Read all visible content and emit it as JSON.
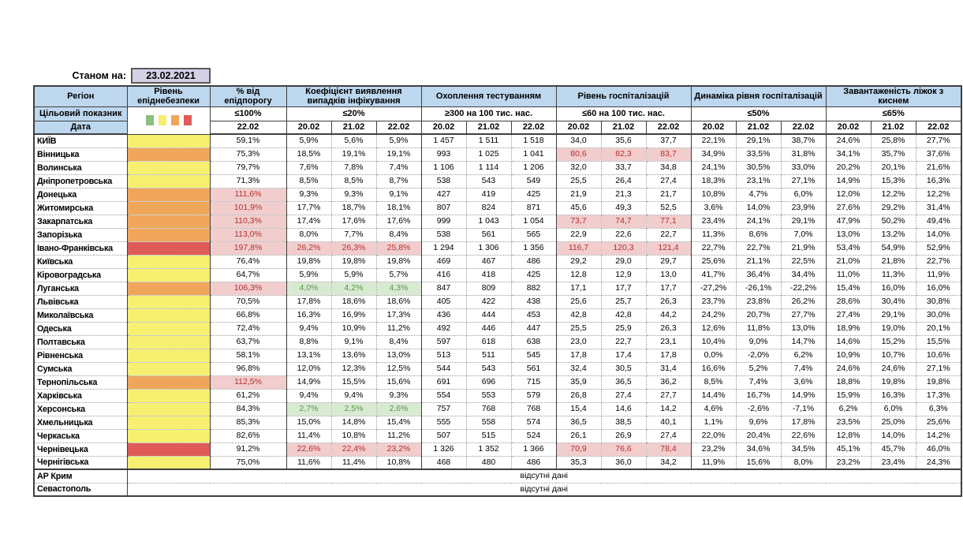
{
  "meta": {
    "as_of_label": "Станом на:",
    "as_of_date": "23.02.2021",
    "missing_data_text": "відсутні дані"
  },
  "colors": {
    "header_bg": "#BDD7EE",
    "date_box_bg": "#D6D0E6",
    "level_green": "#8CBE7D",
    "level_yellow": "#F6EF70",
    "level_orange": "#F0A65A",
    "level_red": "#DE5B58",
    "alert_bg": "#F2CDCD",
    "alert_text": "#B52E2E",
    "good_bg": "#D9EAD3",
    "good_text": "#559646"
  },
  "table": {
    "region_header": "Регіон",
    "target_row_label": "Цільовий показник",
    "date_row_label": "Дата",
    "legend_colors": [
      "level_green",
      "level_yellow",
      "level_orange",
      "level_red"
    ],
    "groups": [
      {
        "label": "Рівень епіднебезпеки",
        "target": "",
        "dates": []
      },
      {
        "label": "% від епідпорогу",
        "target": "≤100%",
        "dates": [
          "22.02"
        ]
      },
      {
        "label": "Коефіцієнт виявлення випадків інфікування",
        "target": "≤20%",
        "dates": [
          "20.02",
          "21.02",
          "22.02"
        ]
      },
      {
        "label": "Охоплення тестуванням",
        "target": "≥300 на 100 тис. нас.",
        "dates": [
          "20.02",
          "21.02",
          "22.02"
        ]
      },
      {
        "label": "Рівень госпіталізацій",
        "target": "≤60 на 100 тис. нас.",
        "dates": [
          "20.02",
          "21.02",
          "22.02"
        ]
      },
      {
        "label": "Динаміка рівня госпіталізацій",
        "target": "≤50%",
        "dates": [
          "20.02",
          "21.02",
          "22.02"
        ]
      },
      {
        "label": "Завантаженість ліжок з киснем",
        "target": "≤65%",
        "dates": [
          "20.02",
          "21.02",
          "22.02"
        ]
      }
    ],
    "rows": [
      {
        "region": "КИЇВ",
        "level": "yellow",
        "epi": "59,1%",
        "epi_alert": false,
        "detect": [
          "5,9%",
          "5,6%",
          "5,9%"
        ],
        "detect_state": "normal",
        "test": [
          "1 457",
          "1 511",
          "1 518"
        ],
        "hosp": [
          "34,0",
          "35,6",
          "37,7"
        ],
        "hosp_alert": false,
        "dyn": [
          "22,1%",
          "29,1%",
          "38,7%"
        ],
        "beds": [
          "24,6%",
          "25,8%",
          "27,7%"
        ]
      },
      {
        "region": "Вінницька",
        "level": "orange",
        "epi": "75,3%",
        "epi_alert": false,
        "detect": [
          "18,5%",
          "19,1%",
          "19,1%"
        ],
        "detect_state": "normal",
        "test": [
          "993",
          "1 025",
          "1 041"
        ],
        "hosp": [
          "80,6",
          "82,3",
          "83,7"
        ],
        "hosp_alert": true,
        "dyn": [
          "34,9%",
          "33,5%",
          "31,8%"
        ],
        "beds": [
          "34,1%",
          "35,7%",
          "37,6%"
        ]
      },
      {
        "region": "Волинська",
        "level": "yellow",
        "epi": "79,7%",
        "epi_alert": false,
        "detect": [
          "7,6%",
          "7,8%",
          "7,4%"
        ],
        "detect_state": "normal",
        "test": [
          "1 106",
          "1 114",
          "1 206"
        ],
        "hosp": [
          "32,0",
          "33,7",
          "34,8"
        ],
        "hosp_alert": false,
        "dyn": [
          "24,1%",
          "30,5%",
          "33,0%"
        ],
        "beds": [
          "20,2%",
          "20,1%",
          "21,6%"
        ]
      },
      {
        "region": "Дніпропетровська",
        "level": "yellow",
        "epi": "71,3%",
        "epi_alert": false,
        "detect": [
          "8,5%",
          "8,5%",
          "8,7%"
        ],
        "detect_state": "normal",
        "test": [
          "538",
          "543",
          "549"
        ],
        "hosp": [
          "25,5",
          "26,4",
          "27,4"
        ],
        "hosp_alert": false,
        "dyn": [
          "18,3%",
          "23,1%",
          "27,1%"
        ],
        "beds": [
          "14,9%",
          "15,3%",
          "16,3%"
        ]
      },
      {
        "region": "Донецька",
        "level": "orange",
        "epi": "111,6%",
        "epi_alert": true,
        "detect": [
          "9,3%",
          "9,3%",
          "9,1%"
        ],
        "detect_state": "normal",
        "test": [
          "427",
          "419",
          "425"
        ],
        "hosp": [
          "21,9",
          "21,3",
          "21,7"
        ],
        "hosp_alert": false,
        "dyn": [
          "10,8%",
          "4,7%",
          "6,0%"
        ],
        "beds": [
          "12,0%",
          "12,2%",
          "12,2%"
        ]
      },
      {
        "region": "Житомирська",
        "level": "orange",
        "epi": "101,9%",
        "epi_alert": true,
        "detect": [
          "17,7%",
          "18,7%",
          "18,1%"
        ],
        "detect_state": "normal",
        "test": [
          "807",
          "824",
          "871"
        ],
        "hosp": [
          "45,6",
          "49,3",
          "52,5"
        ],
        "hosp_alert": false,
        "dyn": [
          "3,6%",
          "14,0%",
          "23,9%"
        ],
        "beds": [
          "27,6%",
          "29,2%",
          "31,4%"
        ]
      },
      {
        "region": "Закарпатська",
        "level": "orange",
        "epi": "110,3%",
        "epi_alert": true,
        "detect": [
          "17,4%",
          "17,6%",
          "17,6%"
        ],
        "detect_state": "normal",
        "test": [
          "999",
          "1 043",
          "1 054"
        ],
        "hosp": [
          "73,7",
          "74,7",
          "77,1"
        ],
        "hosp_alert": true,
        "dyn": [
          "23,4%",
          "24,1%",
          "29,1%"
        ],
        "beds": [
          "47,9%",
          "50,2%",
          "49,4%"
        ]
      },
      {
        "region": "Запорізька",
        "level": "orange",
        "epi": "113,0%",
        "epi_alert": true,
        "detect": [
          "8,0%",
          "7,7%",
          "8,4%"
        ],
        "detect_state": "normal",
        "test": [
          "538",
          "561",
          "565"
        ],
        "hosp": [
          "22,9",
          "22,6",
          "22,7"
        ],
        "hosp_alert": false,
        "dyn": [
          "11,3%",
          "8,6%",
          "7,0%"
        ],
        "beds": [
          "13,0%",
          "13,2%",
          "14,0%"
        ]
      },
      {
        "region": "Івано-Франківська",
        "level": "red",
        "epi": "197,8%",
        "epi_alert": true,
        "detect": [
          "26,2%",
          "26,3%",
          "25,8%"
        ],
        "detect_state": "alert",
        "test": [
          "1 294",
          "1 306",
          "1 356"
        ],
        "hosp": [
          "116,7",
          "120,3",
          "121,4"
        ],
        "hosp_alert": true,
        "dyn": [
          "22,7%",
          "22,7%",
          "21,9%"
        ],
        "beds": [
          "53,4%",
          "54,9%",
          "52,9%"
        ]
      },
      {
        "region": "Київська",
        "level": "yellow",
        "epi": "76,4%",
        "epi_alert": false,
        "detect": [
          "19,8%",
          "19,8%",
          "19,8%"
        ],
        "detect_state": "normal",
        "test": [
          "469",
          "467",
          "486"
        ],
        "hosp": [
          "29,2",
          "29,0",
          "29,7"
        ],
        "hosp_alert": false,
        "dyn": [
          "25,6%",
          "21,1%",
          "22,5%"
        ],
        "beds": [
          "21,0%",
          "21,8%",
          "22,7%"
        ]
      },
      {
        "region": "Кіровоградська",
        "level": "yellow",
        "epi": "64,7%",
        "epi_alert": false,
        "detect": [
          "5,9%",
          "5,9%",
          "5,7%"
        ],
        "detect_state": "normal",
        "test": [
          "416",
          "418",
          "425"
        ],
        "hosp": [
          "12,8",
          "12,9",
          "13,0"
        ],
        "hosp_alert": false,
        "dyn": [
          "41,7%",
          "36,4%",
          "34,4%"
        ],
        "beds": [
          "11,0%",
          "11,3%",
          "11,9%"
        ]
      },
      {
        "region": "Луганська",
        "level": "orange",
        "epi": "106,3%",
        "epi_alert": true,
        "detect": [
          "4,0%",
          "4,2%",
          "4,3%"
        ],
        "detect_state": "good",
        "test": [
          "847",
          "809",
          "882"
        ],
        "hosp": [
          "17,1",
          "17,7",
          "17,7"
        ],
        "hosp_alert": false,
        "dyn": [
          "-27,2%",
          "-26,1%",
          "-22,2%"
        ],
        "beds": [
          "15,4%",
          "16,0%",
          "16,0%"
        ]
      },
      {
        "region": "Львівська",
        "level": "yellow",
        "epi": "70,5%",
        "epi_alert": false,
        "detect": [
          "17,8%",
          "18,6%",
          "18,6%"
        ],
        "detect_state": "normal",
        "test": [
          "405",
          "422",
          "438"
        ],
        "hosp": [
          "25,6",
          "25,7",
          "26,3"
        ],
        "hosp_alert": false,
        "dyn": [
          "23,7%",
          "23,8%",
          "26,2%"
        ],
        "beds": [
          "28,6%",
          "30,4%",
          "30,8%"
        ]
      },
      {
        "region": "Миколаївська",
        "level": "yellow",
        "epi": "66,8%",
        "epi_alert": false,
        "detect": [
          "16,3%",
          "16,9%",
          "17,3%"
        ],
        "detect_state": "normal",
        "test": [
          "436",
          "444",
          "453"
        ],
        "hosp": [
          "42,8",
          "42,8",
          "44,2"
        ],
        "hosp_alert": false,
        "dyn": [
          "24,2%",
          "20,7%",
          "27,7%"
        ],
        "beds": [
          "27,4%",
          "29,1%",
          "30,0%"
        ]
      },
      {
        "region": "Одеська",
        "level": "yellow",
        "epi": "72,4%",
        "epi_alert": false,
        "detect": [
          "9,4%",
          "10,9%",
          "11,2%"
        ],
        "detect_state": "normal",
        "test": [
          "492",
          "446",
          "447"
        ],
        "hosp": [
          "25,5",
          "25,9",
          "26,3"
        ],
        "hosp_alert": false,
        "dyn": [
          "12,6%",
          "11,8%",
          "13,0%"
        ],
        "beds": [
          "18,9%",
          "19,0%",
          "20,1%"
        ]
      },
      {
        "region": "Полтавська",
        "level": "yellow",
        "epi": "63,7%",
        "epi_alert": false,
        "detect": [
          "8,8%",
          "9,1%",
          "8,4%"
        ],
        "detect_state": "normal",
        "test": [
          "597",
          "618",
          "638"
        ],
        "hosp": [
          "23,0",
          "22,7",
          "23,1"
        ],
        "hosp_alert": false,
        "dyn": [
          "10,4%",
          "9,0%",
          "14,7%"
        ],
        "beds": [
          "14,6%",
          "15,2%",
          "15,5%"
        ]
      },
      {
        "region": "Рівненська",
        "level": "yellow",
        "epi": "58,1%",
        "epi_alert": false,
        "detect": [
          "13,1%",
          "13,6%",
          "13,0%"
        ],
        "detect_state": "normal",
        "test": [
          "513",
          "511",
          "545"
        ],
        "hosp": [
          "17,8",
          "17,4",
          "17,8"
        ],
        "hosp_alert": false,
        "dyn": [
          "0,0%",
          "-2,0%",
          "6,2%"
        ],
        "beds": [
          "10,9%",
          "10,7%",
          "10,6%"
        ]
      },
      {
        "region": "Сумська",
        "level": "yellow",
        "epi": "96,8%",
        "epi_alert": false,
        "detect": [
          "12,0%",
          "12,3%",
          "12,5%"
        ],
        "detect_state": "normal",
        "test": [
          "544",
          "543",
          "561"
        ],
        "hosp": [
          "32,4",
          "30,5",
          "31,4"
        ],
        "hosp_alert": false,
        "dyn": [
          "16,6%",
          "5,2%",
          "7,4%"
        ],
        "beds": [
          "24,6%",
          "24,6%",
          "27,1%"
        ]
      },
      {
        "region": "Тернопільська",
        "level": "orange",
        "epi": "112,5%",
        "epi_alert": true,
        "detect": [
          "14,9%",
          "15,5%",
          "15,6%"
        ],
        "detect_state": "normal",
        "test": [
          "691",
          "696",
          "715"
        ],
        "hosp": [
          "35,9",
          "36,5",
          "36,2"
        ],
        "hosp_alert": false,
        "dyn": [
          "8,5%",
          "7,4%",
          "3,6%"
        ],
        "beds": [
          "18,8%",
          "19,8%",
          "19,8%"
        ]
      },
      {
        "region": "Харківська",
        "level": "yellow",
        "epi": "61,2%",
        "epi_alert": false,
        "detect": [
          "9,4%",
          "9,4%",
          "9,3%"
        ],
        "detect_state": "normal",
        "test": [
          "554",
          "553",
          "579"
        ],
        "hosp": [
          "26,8",
          "27,4",
          "27,7"
        ],
        "hosp_alert": false,
        "dyn": [
          "14,4%",
          "16,7%",
          "14,9%"
        ],
        "beds": [
          "15,9%",
          "16,3%",
          "17,3%"
        ]
      },
      {
        "region": "Херсонська",
        "level": "yellow",
        "epi": "84,3%",
        "epi_alert": false,
        "detect": [
          "2,7%",
          "2,5%",
          "2,6%"
        ],
        "detect_state": "good",
        "test": [
          "757",
          "768",
          "768"
        ],
        "hosp": [
          "15,4",
          "14,6",
          "14,2"
        ],
        "hosp_alert": false,
        "dyn": [
          "4,6%",
          "-2,6%",
          "-7,1%"
        ],
        "beds": [
          "6,2%",
          "6,0%",
          "6,3%"
        ]
      },
      {
        "region": "Хмельницька",
        "level": "yellow",
        "epi": "85,3%",
        "epi_alert": false,
        "detect": [
          "15,0%",
          "14,8%",
          "15,4%"
        ],
        "detect_state": "normal",
        "test": [
          "555",
          "558",
          "574"
        ],
        "hosp": [
          "36,5",
          "38,5",
          "40,1"
        ],
        "hosp_alert": false,
        "dyn": [
          "1,1%",
          "9,6%",
          "17,8%"
        ],
        "beds": [
          "23,5%",
          "25,0%",
          "25,6%"
        ]
      },
      {
        "region": "Черкаська",
        "level": "yellow",
        "epi": "82,6%",
        "epi_alert": false,
        "detect": [
          "11,4%",
          "10,8%",
          "11,2%"
        ],
        "detect_state": "normal",
        "test": [
          "507",
          "515",
          "524"
        ],
        "hosp": [
          "26,1",
          "26,9",
          "27,4"
        ],
        "hosp_alert": false,
        "dyn": [
          "22,0%",
          "20,4%",
          "22,6%"
        ],
        "beds": [
          "12,8%",
          "14,0%",
          "14,2%"
        ]
      },
      {
        "region": "Чернівецька",
        "level": "red",
        "epi": "91,2%",
        "epi_alert": false,
        "detect": [
          "22,6%",
          "22,4%",
          "23,2%"
        ],
        "detect_state": "alert",
        "test": [
          "1 326",
          "1 352",
          "1 366"
        ],
        "hosp": [
          "70,9",
          "76,6",
          "78,4"
        ],
        "hosp_alert": true,
        "dyn": [
          "23,2%",
          "34,6%",
          "34,5%"
        ],
        "beds": [
          "45,1%",
          "45,7%",
          "46,0%"
        ]
      },
      {
        "region": "Чернігівська",
        "level": "yellow",
        "epi": "75,0%",
        "epi_alert": false,
        "detect": [
          "11,6%",
          "11,4%",
          "10,8%"
        ],
        "detect_state": "normal",
        "test": [
          "468",
          "480",
          "486"
        ],
        "hosp": [
          "35,3",
          "36,0",
          "34,2"
        ],
        "hosp_alert": false,
        "dyn": [
          "11,9%",
          "15,6%",
          "8,0%"
        ],
        "beds": [
          "23,2%",
          "23,4%",
          "24,3%"
        ]
      }
    ],
    "no_data_rows": [
      "АР Крим",
      "Севастополь"
    ]
  }
}
